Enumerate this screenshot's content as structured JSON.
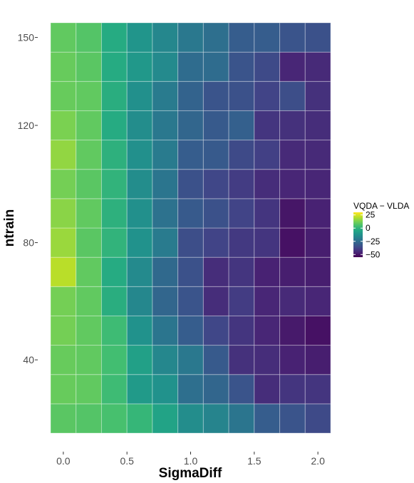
{
  "chart_data": {
    "type": "heatmap",
    "title": "",
    "xlabel": "SigmaDiff",
    "ylabel": "ntrain",
    "x": [
      0,
      0.2,
      0.4,
      0.6,
      0.8,
      1.0,
      1.2,
      1.4,
      1.6,
      1.8,
      2.0
    ],
    "y": [
      20,
      30,
      40,
      50,
      60,
      70,
      80,
      90,
      100,
      110,
      120,
      130,
      140,
      150
    ],
    "xlim": [
      -0.1,
      2.1
    ],
    "ylim": [
      15,
      155
    ],
    "x_ticks": [
      {
        "value": 0,
        "label": "0.0"
      },
      {
        "value": 0.5,
        "label": "0.5"
      },
      {
        "value": 1.0,
        "label": "1.0"
      },
      {
        "value": 1.5,
        "label": "1.5"
      },
      {
        "value": 2.0,
        "label": "2.0"
      }
    ],
    "y_ticks": [
      {
        "value": 40,
        "label": "40"
      },
      {
        "value": 80,
        "label": "80"
      },
      {
        "value": 120,
        "label": "120"
      },
      {
        "value": 150,
        "label": "150"
      }
    ],
    "z": [
      [
        8,
        7,
        5,
        1,
        -6,
        -14,
        -17,
        -22,
        -30,
        -33,
        -36
      ],
      [
        10,
        9,
        3,
        -9,
        -12,
        -24,
        -27,
        -33,
        -44,
        -42,
        -42
      ],
      [
        10,
        9,
        4,
        -7,
        -16,
        -21,
        -31,
        -43,
        -44,
        -47,
        -48
      ],
      [
        12,
        9,
        3,
        -12,
        -22,
        -30,
        -37,
        -42,
        -46,
        -49,
        -51
      ],
      [
        12,
        9,
        -2,
        -16,
        -27,
        -33,
        -44,
        -40,
        -46,
        -45,
        -46
      ],
      [
        21,
        9,
        -3,
        -15,
        -26,
        -34,
        -44,
        -42,
        -47,
        -48,
        -48
      ],
      [
        17,
        8,
        0,
        -12,
        -20,
        -35,
        -38,
        -41,
        -42,
        -51,
        -48
      ],
      [
        15,
        9,
        -1,
        -13,
        -23,
        -31,
        -34,
        -38,
        -42,
        -50,
        -47
      ],
      [
        12,
        8,
        0,
        -14,
        -22,
        -34,
        -37,
        -40,
        -44,
        -46,
        -46
      ],
      [
        16,
        9,
        -1,
        -13,
        -20,
        -30,
        -31,
        -36,
        -39,
        -45,
        -45
      ],
      [
        13,
        9,
        -3,
        -14,
        -21,
        -27,
        -31,
        -29,
        -42,
        -43,
        -44
      ],
      [
        10,
        9,
        -2,
        -13,
        -20,
        -28,
        -33,
        -34,
        -38,
        -35,
        -43
      ],
      [
        10,
        8,
        -3,
        -10,
        -15,
        -25,
        -25,
        -33,
        -36,
        -46,
        -45
      ],
      [
        9,
        7,
        -3,
        -11,
        -16,
        -21,
        -24,
        -30,
        -30,
        -33,
        -34
      ]
    ],
    "zlim": [
      -55,
      30
    ],
    "colorscale": "viridis",
    "grid": true,
    "legend": {
      "title": "VQDA − VLDA",
      "placement": "right",
      "ticks": [
        {
          "value": 25,
          "label": "25"
        },
        {
          "value": 0,
          "label": "0"
        },
        {
          "value": -25,
          "label": "−25"
        },
        {
          "value": -50,
          "label": "−50"
        }
      ]
    }
  }
}
